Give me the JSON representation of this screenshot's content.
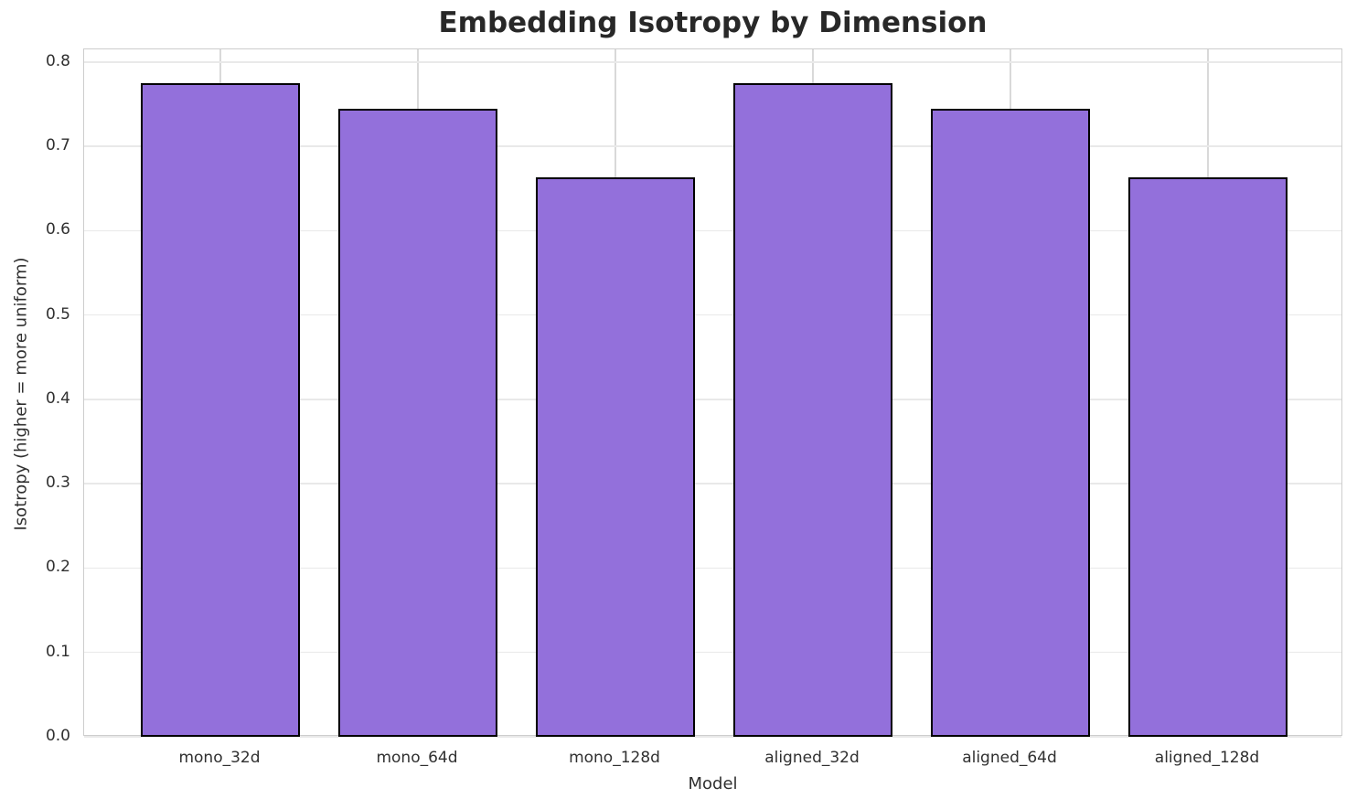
{
  "chart_data": {
    "type": "bar",
    "title": "Embedding Isotropy by Dimension",
    "xlabel": "Model",
    "ylabel": "Isotropy (higher = more uniform)",
    "categories": [
      "mono_32d",
      "mono_64d",
      "mono_128d",
      "aligned_32d",
      "aligned_64d",
      "aligned_128d"
    ],
    "values": [
      0.775,
      0.745,
      0.663,
      0.775,
      0.745,
      0.663
    ],
    "ylim": [
      0.0,
      0.815
    ],
    "yticks": [
      0.0,
      0.1,
      0.2,
      0.3,
      0.4,
      0.5,
      0.6,
      0.7,
      0.8
    ],
    "ytick_labels": [
      "0.0",
      "0.1",
      "0.2",
      "0.3",
      "0.4",
      "0.5",
      "0.6",
      "0.7",
      "0.8"
    ],
    "grid": true,
    "legend_position": "none",
    "bar_color": "#9370DB",
    "bar_edge_color": "#000000",
    "grid_color_horizontal": "#e9e9e9",
    "grid_color_vertical": "#d9d9d9"
  }
}
